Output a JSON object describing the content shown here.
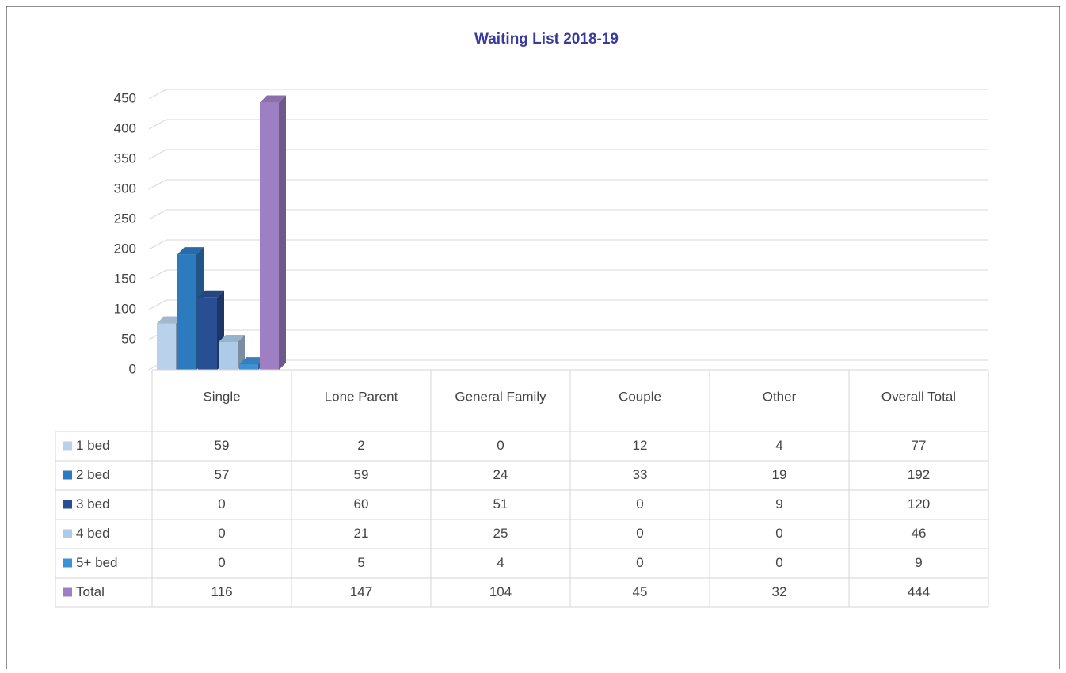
{
  "chart_data": {
    "type": "bar3d",
    "title": "Waiting List 2018-19",
    "categories": [
      "Single",
      "Lone Parent",
      "General Family",
      "Couple",
      "Other",
      "Overall Total"
    ],
    "series": [
      {
        "name": "1 bed",
        "color": "#b9d1ea",
        "values": [
          59,
          2,
          0,
          12,
          4,
          77
        ]
      },
      {
        "name": "2 bed",
        "color": "#2e7abf",
        "values": [
          57,
          59,
          24,
          33,
          19,
          192
        ]
      },
      {
        "name": "3 bed",
        "color": "#284f92",
        "values": [
          0,
          60,
          51,
          0,
          9,
          120
        ]
      },
      {
        "name": "4 bed",
        "color": "#adcbe8",
        "values": [
          0,
          21,
          25,
          0,
          0,
          46
        ]
      },
      {
        "name": "5+ bed",
        "color": "#3c92d6",
        "values": [
          0,
          5,
          4,
          0,
          0,
          9
        ]
      },
      {
        "name": "Total",
        "color": "#9f7fc3",
        "values": [
          116,
          147,
          104,
          45,
          32,
          444
        ]
      }
    ],
    "ylim": [
      0,
      450
    ],
    "yticks": [
      0,
      50,
      100,
      150,
      200,
      250,
      300,
      350,
      400,
      450
    ],
    "grid": true
  }
}
